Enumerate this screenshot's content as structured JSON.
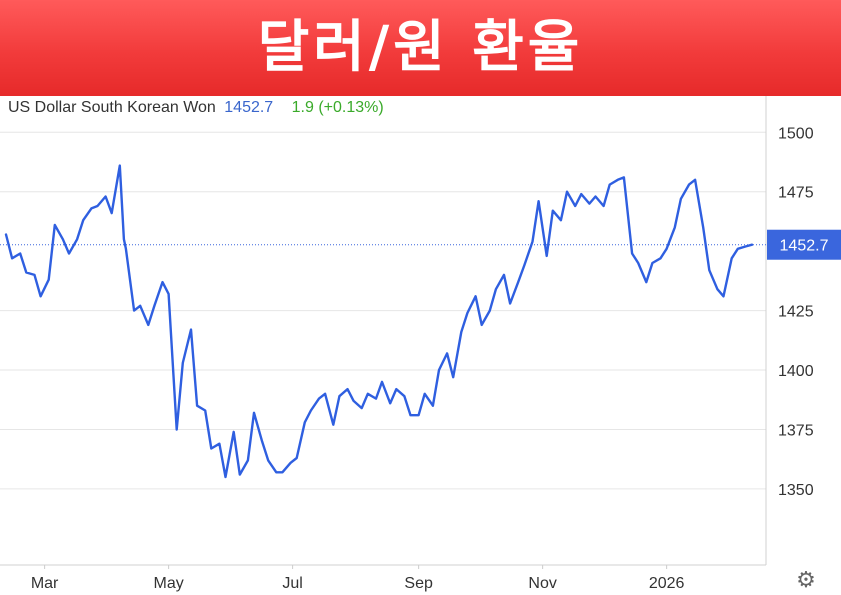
{
  "header": {
    "title": "달러/원 환율"
  },
  "legend": {
    "series_name": "US Dollar South Korean Won",
    "last_value": "1452.7",
    "change": "1.9 (+0.13%)"
  },
  "colors": {
    "banner": "#f23b3b",
    "line": "#2f5fe0",
    "change_positive": "#3aaa2a",
    "last_value_badge": "#3a66dd"
  },
  "icons": {
    "settings": "gear-icon"
  },
  "chart_data": {
    "type": "line",
    "title": "",
    "xlabel": "",
    "ylabel": "",
    "x_tick_labels": [
      "Mar",
      "May",
      "Jul",
      "Sep",
      "Nov",
      "2026"
    ],
    "y_tick_labels": [
      "1500",
      "1475",
      "1425",
      "1400",
      "1375",
      "1350"
    ],
    "ylim": [
      1318,
      1506
    ],
    "last_value_label": "1452.7",
    "reference_line": 1452.7,
    "grid": "horizontal",
    "series": [
      {
        "x": [
          "2025-02-10",
          "2025-02-13",
          "2025-02-17",
          "2025-02-20",
          "2025-02-24",
          "2025-02-27",
          "2025-03-03",
          "2025-03-06",
          "2025-03-10",
          "2025-03-13",
          "2025-03-17",
          "2025-03-20",
          "2025-03-24",
          "2025-03-27",
          "2025-03-31",
          "2025-04-03",
          "2025-04-07",
          "2025-04-09",
          "2025-04-10",
          "2025-04-14",
          "2025-04-17",
          "2025-04-21",
          "2025-04-24",
          "2025-04-28",
          "2025-05-01",
          "2025-05-05",
          "2025-05-08",
          "2025-05-12",
          "2025-05-15",
          "2025-05-19",
          "2025-05-22",
          "2025-05-26",
          "2025-05-29",
          "2025-06-02",
          "2025-06-05",
          "2025-06-09",
          "2025-06-12",
          "2025-06-16",
          "2025-06-19",
          "2025-06-23",
          "2025-06-26",
          "2025-06-30",
          "2025-07-03",
          "2025-07-07",
          "2025-07-10",
          "2025-07-14",
          "2025-07-17",
          "2025-07-21",
          "2025-07-24",
          "2025-07-28",
          "2025-07-31",
          "2025-08-04",
          "2025-08-07",
          "2025-08-11",
          "2025-08-14",
          "2025-08-18",
          "2025-08-21",
          "2025-08-25",
          "2025-08-28",
          "2025-09-01",
          "2025-09-04",
          "2025-09-08",
          "2025-09-11",
          "2025-09-15",
          "2025-09-18",
          "2025-09-22",
          "2025-09-25",
          "2025-09-29",
          "2025-10-02",
          "2025-10-06",
          "2025-10-09",
          "2025-10-13",
          "2025-10-16",
          "2025-10-20",
          "2025-10-23",
          "2025-10-27",
          "2025-10-30",
          "2025-11-03",
          "2025-11-06",
          "2025-11-10",
          "2025-11-13",
          "2025-11-17",
          "2025-11-20",
          "2025-11-24",
          "2025-11-27",
          "2025-12-01",
          "2025-12-04",
          "2025-12-08",
          "2025-12-11",
          "2025-12-15",
          "2025-12-18",
          "2025-12-22",
          "2025-12-25",
          "2025-12-29",
          "2026-01-01",
          "2026-01-05",
          "2026-01-08",
          "2026-01-12",
          "2026-01-15",
          "2026-01-19",
          "2026-01-22",
          "2026-01-26",
          "2026-01-29",
          "2026-02-02",
          "2026-02-05",
          "2026-02-09",
          "2026-02-12"
        ],
        "values": [
          1457,
          1447,
          1449,
          1441,
          1440,
          1431,
          1438,
          1461,
          1455,
          1449,
          1455,
          1463,
          1468,
          1469,
          1473,
          1466,
          1486,
          1455,
          1451,
          1425,
          1427,
          1419,
          1427,
          1437,
          1432,
          1375,
          1403,
          1417,
          1385,
          1383,
          1367,
          1369,
          1355,
          1374,
          1356,
          1362,
          1382,
          1370,
          1362,
          1357,
          1357,
          1361,
          1363,
          1378,
          1383,
          1388,
          1390,
          1377,
          1389,
          1392,
          1387,
          1384,
          1390,
          1388,
          1395,
          1386,
          1392,
          1389,
          1381,
          1381,
          1390,
          1385,
          1400,
          1407,
          1397,
          1416,
          1424,
          1431,
          1419,
          1425,
          1434,
          1440,
          1428,
          1437,
          1444,
          1454,
          1471,
          1448,
          1467,
          1463,
          1475,
          1469,
          1474,
          1470,
          1473,
          1469,
          1478,
          1480,
          1481,
          1449,
          1445,
          1437,
          1445,
          1447,
          1451,
          1460,
          1472,
          1478,
          1480,
          1460,
          1442,
          1434,
          1431,
          1447,
          1451,
          1452,
          1452.7
        ]
      }
    ]
  }
}
